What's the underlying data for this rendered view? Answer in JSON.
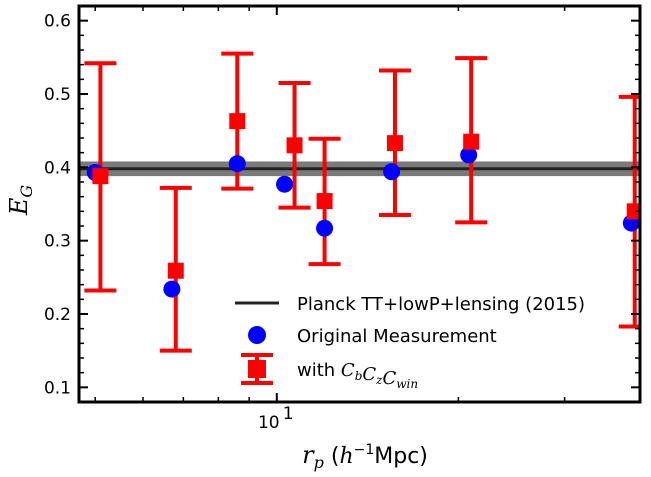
{
  "chart_data": {
    "type": "scatter",
    "xlabel": {
      "var": "r",
      "sub": "p",
      "open": " (",
      "h": "h",
      "exp": "−1",
      "unit": "Mpc)"
    },
    "ylabel": {
      "var": "E",
      "sub": "G"
    },
    "xscale": "log",
    "xlim": [
      4.7,
      40
    ],
    "ylim": [
      0.08,
      0.62
    ],
    "yticks": [
      "0.1",
      "0.2",
      "0.3",
      "0.4",
      "0.5",
      "0.6"
    ],
    "xtick_labels": [
      {
        "value": 10,
        "base": "10",
        "exp": "1"
      }
    ],
    "grid": false,
    "legend_position": "lower-right",
    "reference_band": {
      "name": "Planck TT+lowP+lensing (2015)",
      "value": 0.398,
      "low": 0.388,
      "high": 0.408,
      "line_color": "#222222",
      "band_color": "#7a7a7a"
    },
    "series": [
      {
        "name": "Original Measurement",
        "marker": "circle",
        "color": "#0000ff",
        "x": [
          5.0,
          6.7,
          8.6,
          10.3,
          12.0,
          15.5,
          20.8,
          38.7
        ],
        "y": [
          0.393,
          0.234,
          0.405,
          0.377,
          0.317,
          0.394,
          0.417,
          0.324
        ]
      },
      {
        "name_prefix": "with ",
        "name_math": [
          {
            "t": "C",
            "s": "b"
          },
          {
            "t": "C",
            "s": "z"
          },
          {
            "t": "C",
            "s": "win"
          }
        ],
        "marker": "square",
        "color": "#ff0000",
        "x": [
          5.1,
          6.8,
          8.6,
          10.7,
          12.0,
          15.7,
          21.0,
          39.2
        ],
        "y": [
          0.388,
          0.259,
          0.463,
          0.43,
          0.354,
          0.433,
          0.435,
          0.34
        ],
        "yerr_low": [
          0.232,
          0.15,
          0.371,
          0.345,
          0.268,
          0.335,
          0.325,
          0.183
        ],
        "yerr_high": [
          0.542,
          0.372,
          0.555,
          0.515,
          0.439,
          0.532,
          0.549,
          0.496
        ]
      }
    ]
  }
}
